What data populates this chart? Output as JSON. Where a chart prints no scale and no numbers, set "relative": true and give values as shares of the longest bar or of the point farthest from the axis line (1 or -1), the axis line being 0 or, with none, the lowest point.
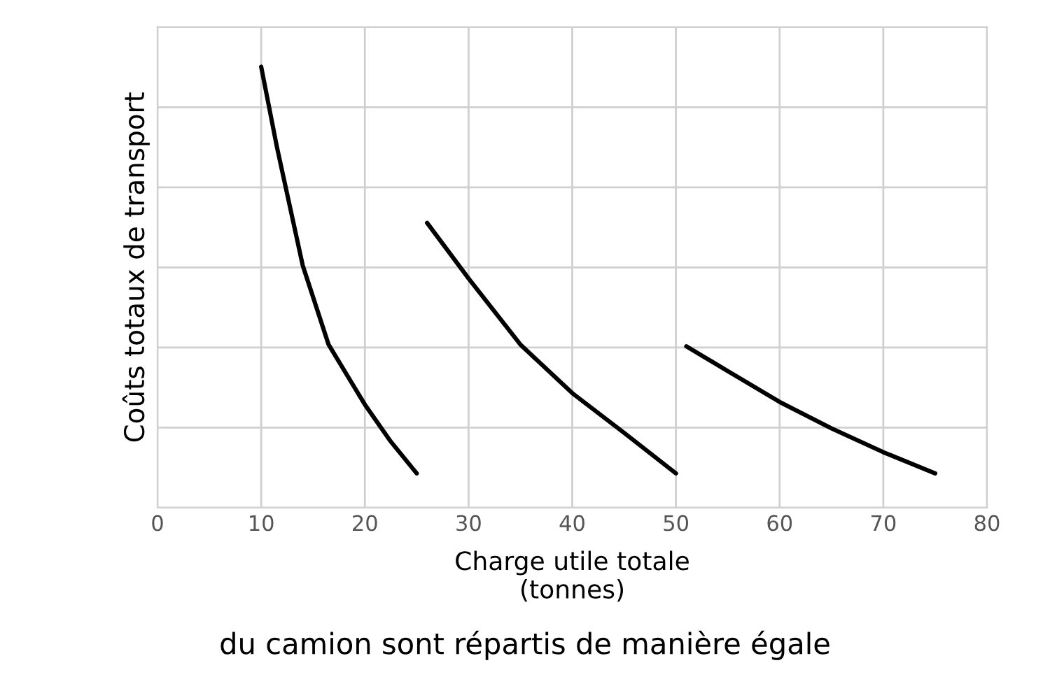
{
  "chart_data": {
    "type": "line",
    "relative": true,
    "xlabel": "Charge utile totale\n(tonnes)",
    "ylabel": "Coûts totaux de transport",
    "xlim": [
      0,
      80
    ],
    "xticks": [
      0,
      10,
      20,
      30,
      40,
      50,
      60,
      70,
      80
    ],
    "grid": true,
    "legend": false,
    "marker": "none",
    "line_style": "solid",
    "annotations": [
      "du camion sont répartis de manière égale"
    ],
    "series": [
      {
        "color": "#000000",
        "x": [
          10,
          11.5,
          14,
          16.5,
          20,
          22.5,
          25
        ],
        "values": [
          1.0,
          0.82,
          0.55,
          0.37,
          0.234,
          0.15,
          0.078
        ]
      },
      {
        "color": "#000000",
        "x": [
          26,
          30,
          35,
          40,
          45,
          50
        ],
        "values": [
          0.646,
          0.52,
          0.37,
          0.26,
          0.17,
          0.078
        ]
      },
      {
        "color": "#000000",
        "x": [
          51,
          55,
          60,
          65,
          70,
          75
        ],
        "values": [
          0.366,
          0.31,
          0.24,
          0.18,
          0.126,
          0.078
        ]
      }
    ]
  }
}
